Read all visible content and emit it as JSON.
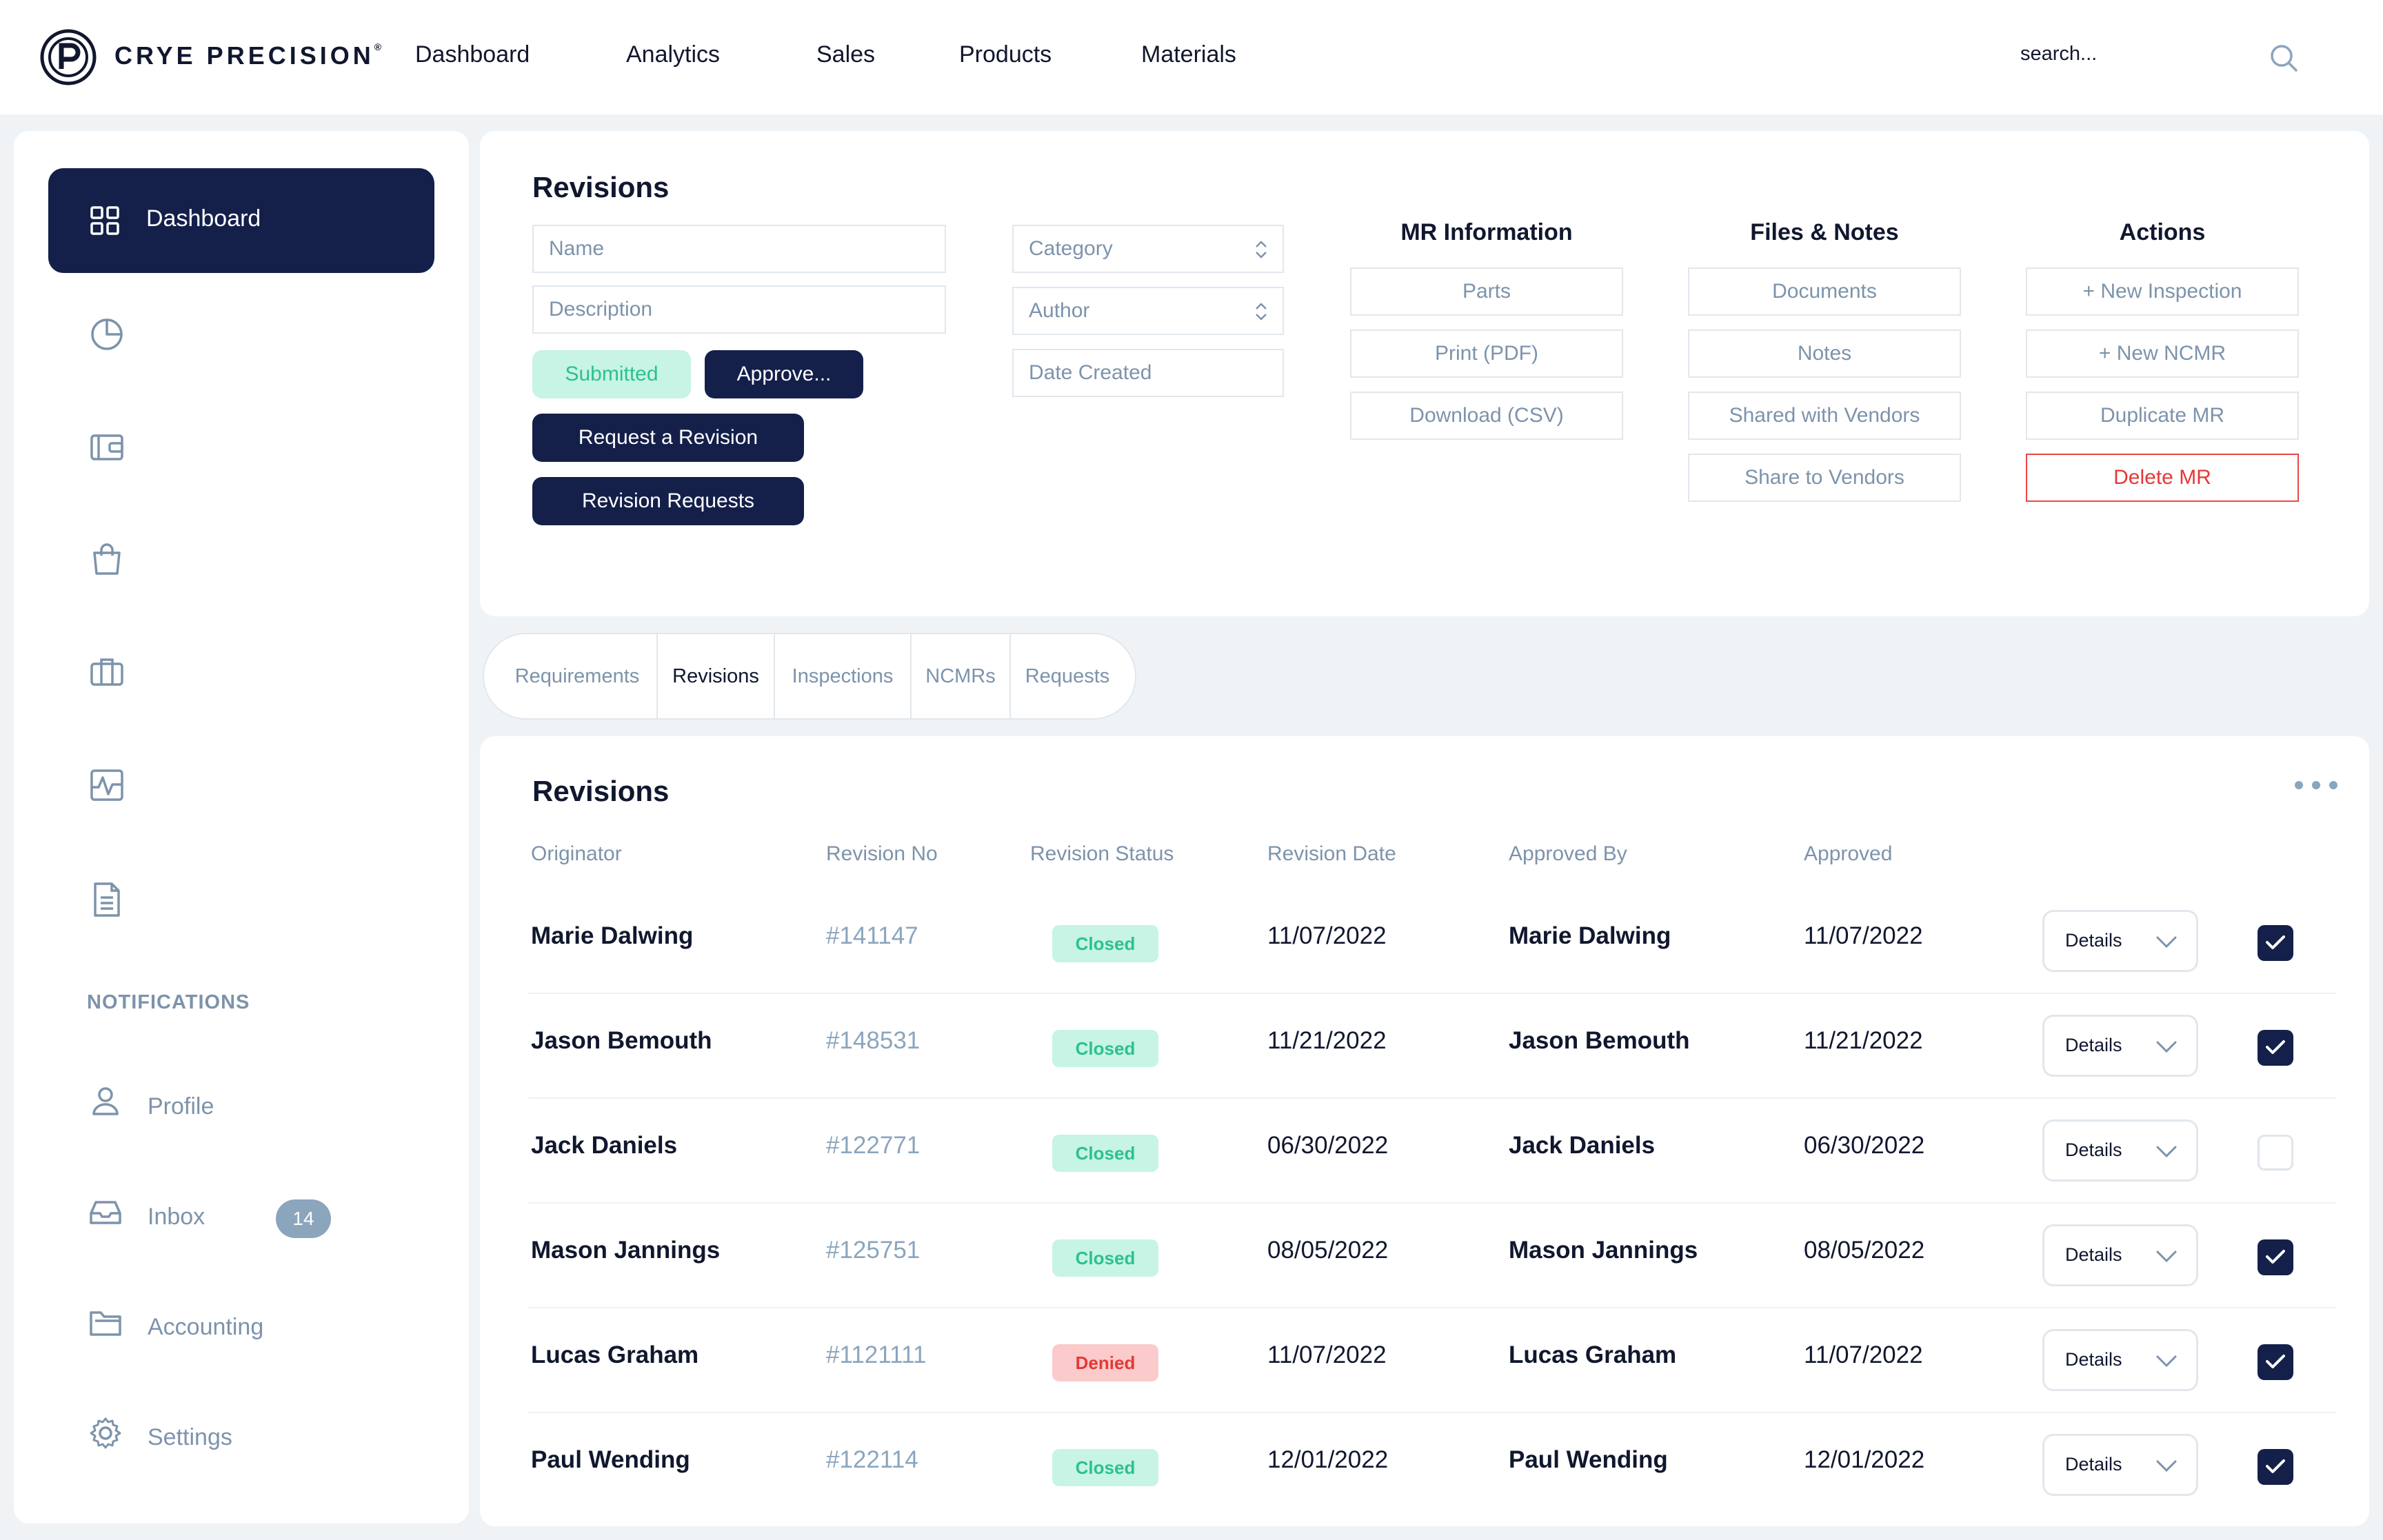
{
  "brand": {
    "name": "CRYE PRECISION",
    "mark": "®"
  },
  "topnav": {
    "items": [
      "Dashboard",
      "Analytics",
      "Sales",
      "Products",
      "Materials"
    ],
    "search_placeholder": "search..."
  },
  "sidebar": {
    "active_label": "Dashboard",
    "icons": [
      "chart-pie-icon",
      "wallet-icon",
      "shopping-bag-icon",
      "briefcase-icon",
      "activity-icon",
      "document-icon"
    ],
    "notifications_heading": "NOTIFICATIONS",
    "links": {
      "profile": "Profile",
      "inbox": "Inbox",
      "accounting": "Accounting",
      "settings": "Settings"
    },
    "inbox_count": "14"
  },
  "revisions_form": {
    "title": "Revisions",
    "name_placeholder": "Name",
    "description_placeholder": "Description",
    "category_placeholder": "Category",
    "author_placeholder": "Author",
    "date_created_placeholder": "Date Created",
    "submitted_label": "Submitted",
    "approve_label": "Approve...",
    "request_revision_label": "Request a Revision",
    "revision_requests_label": "Revision Requests"
  },
  "mr_information": {
    "heading": "MR Information",
    "buttons": [
      "Parts",
      "Print (PDF)",
      "Download (CSV)"
    ]
  },
  "files_notes": {
    "heading": "Files & Notes",
    "buttons": [
      "Documents",
      "Notes",
      "Shared with Vendors",
      "Share to Vendors"
    ]
  },
  "actions": {
    "heading": "Actions",
    "buttons": [
      "+ New Inspection",
      "+ New NCMR",
      "Duplicate MR",
      "Delete MR"
    ]
  },
  "tabs": {
    "items": [
      "Requirements",
      "Revisions",
      "Inspections",
      "NCMRs",
      "Requests"
    ],
    "active": "Revisions"
  },
  "table": {
    "title": "Revisions",
    "headers": [
      "Originator",
      "Revision No",
      "Revision Status",
      "Revision Date",
      "Approved By",
      "Approved"
    ],
    "details_label": "Details",
    "rows": [
      {
        "originator": "Marie Dalwing",
        "revision_no": "#141147",
        "status": "Closed",
        "revision_date": "11/07/2022",
        "approved_by": "Marie Dalwing",
        "approved": "11/07/2022",
        "checked": true
      },
      {
        "originator": "Jason Bemouth",
        "revision_no": "#148531",
        "status": "Closed",
        "revision_date": "11/21/2022",
        "approved_by": "Jason Bemouth",
        "approved": "11/21/2022",
        "checked": true
      },
      {
        "originator": "Jack Daniels",
        "revision_no": "#122771",
        "status": "Closed",
        "revision_date": "06/30/2022",
        "approved_by": "Jack Daniels",
        "approved": "06/30/2022",
        "checked": false
      },
      {
        "originator": "Mason Jannings",
        "revision_no": "#125751",
        "status": "Closed",
        "revision_date": "08/05/2022",
        "approved_by": "Mason Jannings",
        "approved": "08/05/2022",
        "checked": true
      },
      {
        "originator": "Lucas Graham",
        "revision_no": "#1121111",
        "status": "Denied",
        "revision_date": "11/07/2022",
        "approved_by": "Lucas Graham",
        "approved": "11/07/2022",
        "checked": true
      },
      {
        "originator": "Paul Wending",
        "revision_no": "#122114",
        "status": "Closed",
        "revision_date": "12/01/2022",
        "approved_by": "Paul Wending",
        "approved": "12/01/2022",
        "checked": true
      }
    ]
  },
  "colors": {
    "navy": "#14204a",
    "muted": "#7d93ab",
    "closed_bg": "#c7f4e4",
    "closed_text": "#2cc190",
    "denied_bg": "#fbcaca",
    "denied_text": "#e53838",
    "page_bg": "#f0f3f6"
  }
}
